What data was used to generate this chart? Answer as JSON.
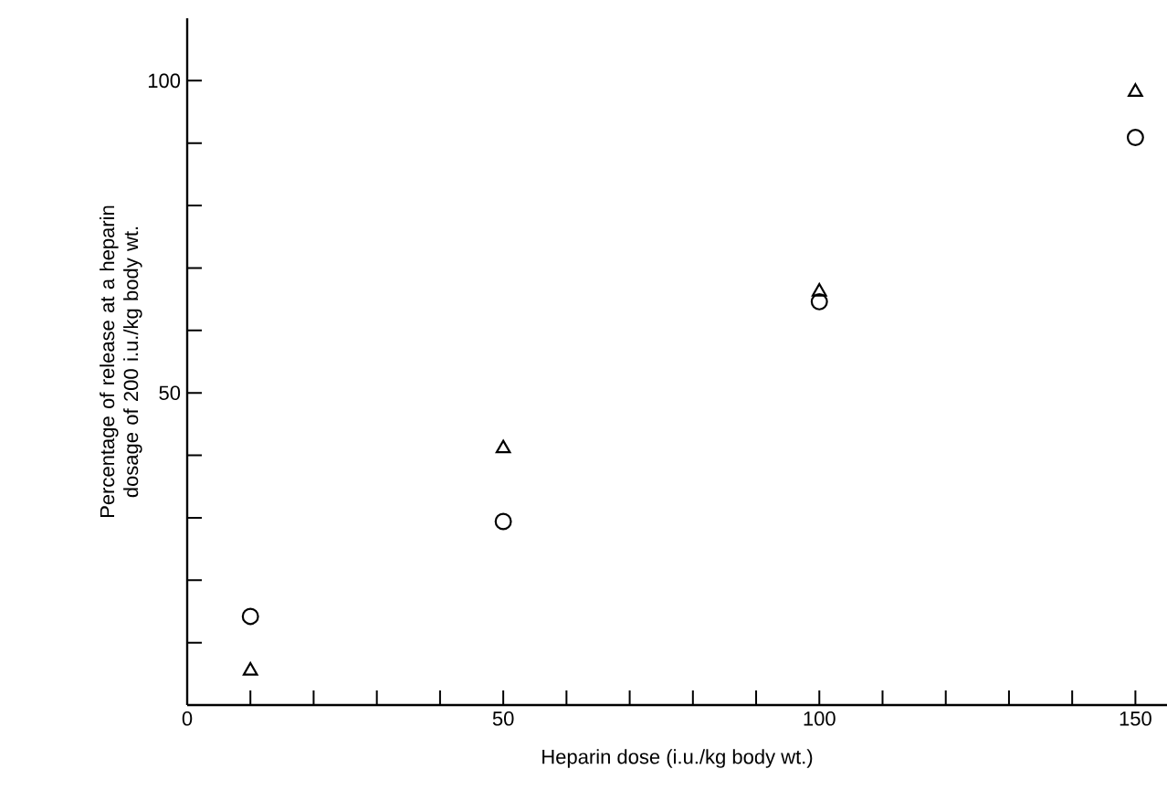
{
  "chart_data": {
    "type": "scatter",
    "xlabel": "Heparin dose (i.u./kg body wt.)",
    "ylabel": "Percentage of release at a heparin dosage of 200 i.u./kg body wt.",
    "xlim": [
      0,
      155
    ],
    "ylim": [
      0,
      110
    ],
    "xticks": [
      0,
      {
        "value": 10,
        "label": null
      },
      {
        "value": 20,
        "label": null
      },
      {
        "value": 30,
        "label": null
      },
      {
        "value": 40,
        "label": null
      },
      50,
      {
        "value": 60,
        "label": null
      },
      {
        "value": 70,
        "label": null
      },
      {
        "value": 80,
        "label": null
      },
      {
        "value": 90,
        "label": null
      },
      100,
      {
        "value": 110,
        "label": null
      },
      {
        "value": 120,
        "label": null
      },
      {
        "value": 130,
        "label": null
      },
      {
        "value": 140,
        "label": null
      },
      150
    ],
    "yticks": [
      {
        "value": 10,
        "label": null
      },
      {
        "value": 20,
        "label": null
      },
      {
        "value": 30,
        "label": null
      },
      {
        "value": 40,
        "label": null
      },
      50,
      {
        "value": 60,
        "label": null
      },
      {
        "value": 70,
        "label": null
      },
      {
        "value": 80,
        "label": null
      },
      {
        "value": 90,
        "label": null
      },
      100
    ],
    "series": [
      {
        "color": "#000000",
        "marker": "circle",
        "x": [
          10,
          50,
          100,
          150
        ],
        "values": [
          14.2,
          29.4,
          64.6,
          90.9
        ]
      },
      {
        "color": "#000000",
        "marker": "triangle",
        "x": [
          10,
          50,
          100,
          150
        ],
        "values": [
          5.5,
          41.1,
          66.2,
          98.2
        ]
      }
    ]
  }
}
